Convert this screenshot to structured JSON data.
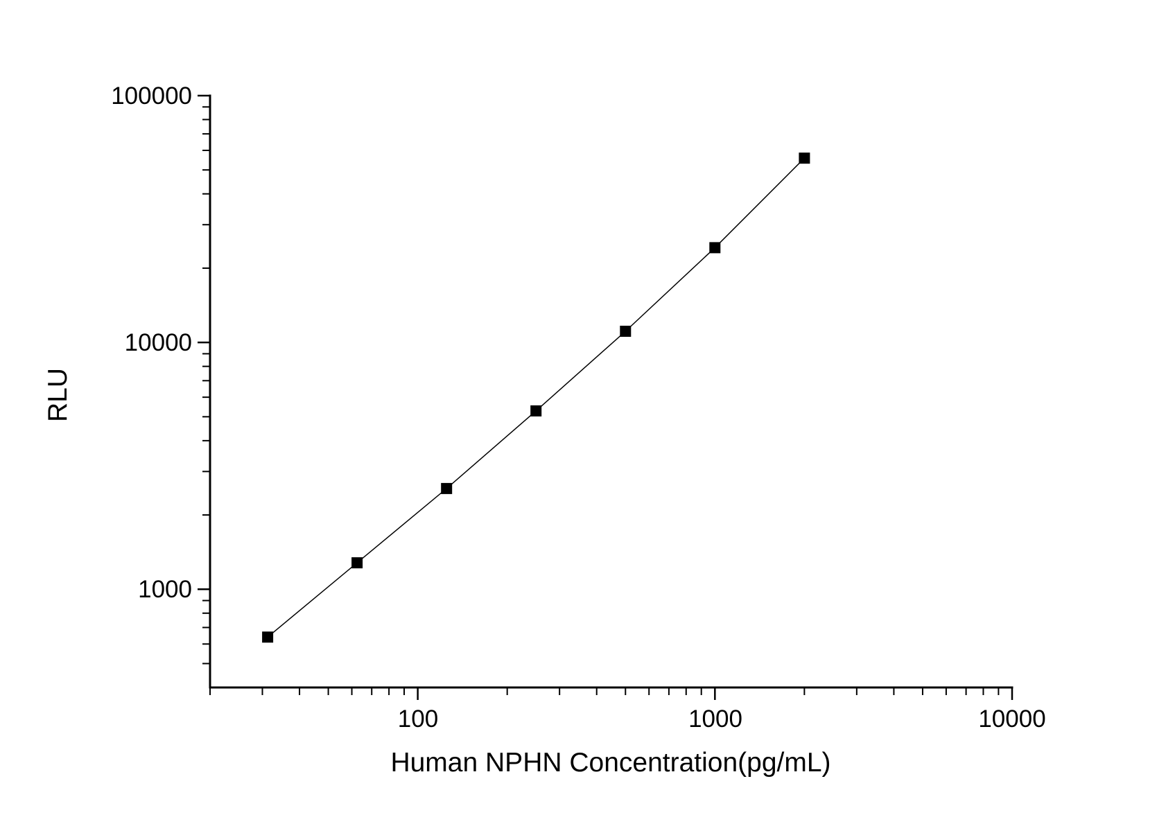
{
  "chart_data": {
    "type": "line",
    "title": "",
    "xlabel": "Human NPHN Concentration(pg/mL)",
    "ylabel": "RLU",
    "x_scale": "log10",
    "y_scale": "log10",
    "xlim": [
      20,
      10000
    ],
    "ylim": [
      400,
      100000
    ],
    "grid": false,
    "legend": null,
    "x_major_ticks": [
      100,
      1000,
      10000
    ],
    "x_tick_labels": [
      "100",
      "1000",
      "10000"
    ],
    "x_minor_ticks": [
      20,
      30,
      40,
      50,
      60,
      70,
      80,
      90,
      200,
      300,
      400,
      500,
      600,
      700,
      800,
      900,
      2000,
      3000,
      4000,
      5000,
      6000,
      7000,
      8000,
      9000
    ],
    "y_major_ticks": [
      1000,
      10000,
      100000
    ],
    "y_tick_labels": [
      "1000",
      "10000",
      "100000"
    ],
    "y_minor_ticks": [
      500,
      600,
      700,
      800,
      900,
      2000,
      3000,
      4000,
      5000,
      6000,
      7000,
      8000,
      9000,
      20000,
      30000,
      40000,
      50000,
      60000,
      70000,
      80000,
      90000
    ],
    "marker": "filled-square",
    "colors": {
      "background": "#ffffff",
      "axis": "#000000",
      "text": "#000000",
      "line": "#000000",
      "marker": "#000000"
    },
    "series": [
      {
        "x": [
          31.25,
          62.5,
          125,
          250,
          500,
          1000,
          2000
        ],
        "y": [
          640,
          1280,
          2560,
          5280,
          11100,
          24200,
          55800
        ]
      }
    ]
  }
}
